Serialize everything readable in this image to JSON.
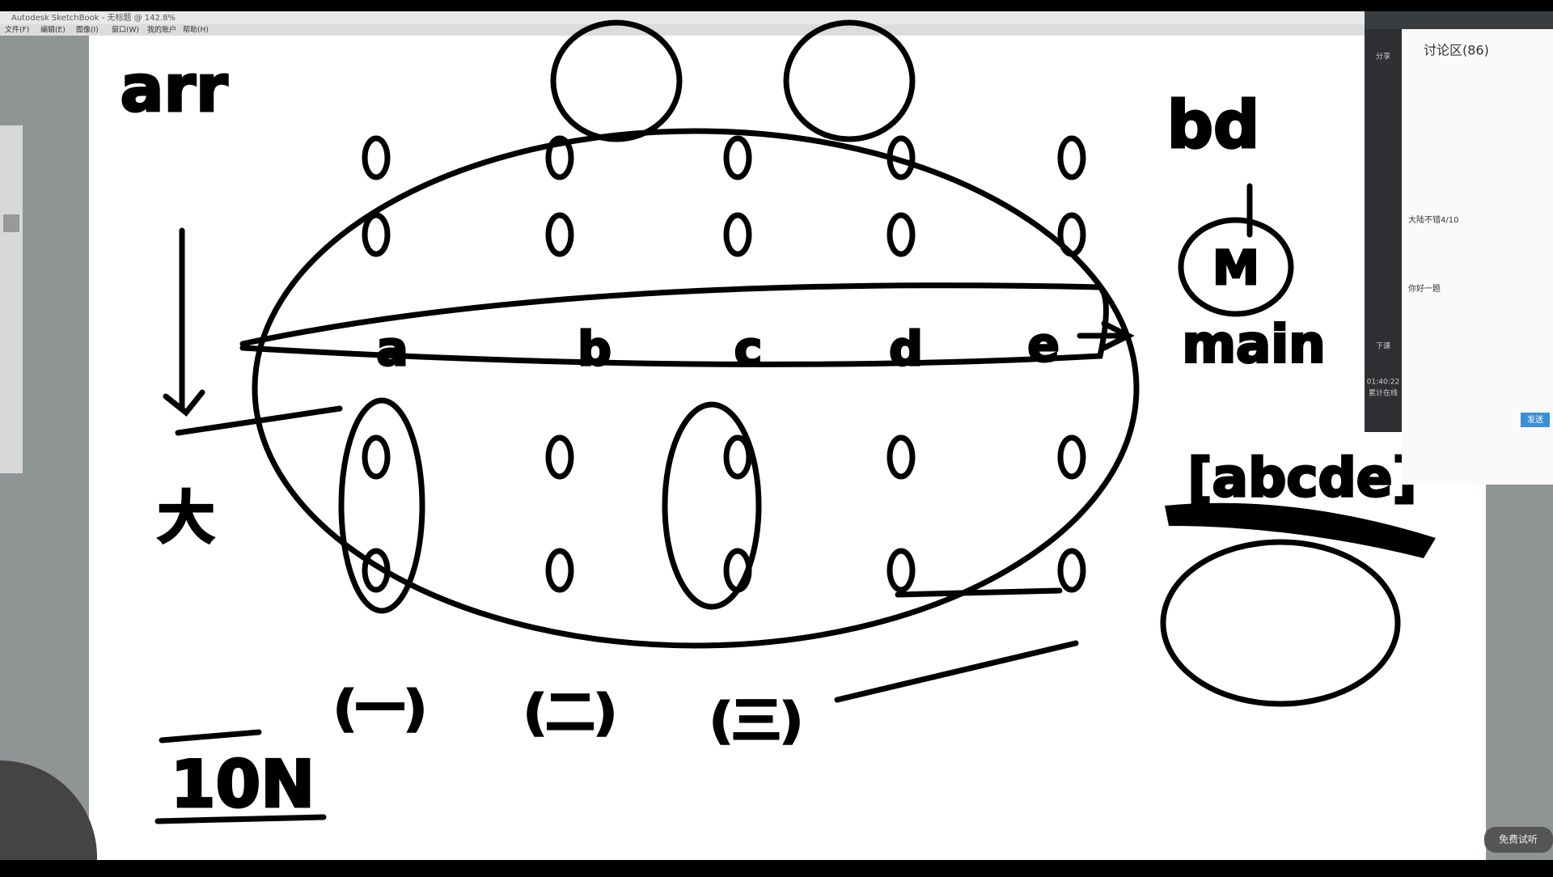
{
  "window": {
    "title": "Autodesk SketchBook - 无标题 @ 142.8%",
    "menu": [
      "文件(F)",
      "编辑(E)",
      "图像(I)",
      "窗口(W)",
      "我的账户",
      "帮助(H)"
    ]
  },
  "canvas": {
    "labels": [
      "arr",
      "bd",
      "main",
      "a",
      "b",
      "c",
      "d",
      "e",
      "M",
      "[abcde]",
      "大",
      "10N",
      "(一)",
      "(二)",
      "(三)"
    ]
  },
  "chat": {
    "header": "讨论区(86)",
    "messages": [
      "大陆不错4/10",
      "你好一题"
    ],
    "side": [
      "分享",
      "下课"
    ],
    "timer": "01:40:22",
    "online": "累计在线",
    "send": "发送"
  },
  "footer": {
    "button": "免费试听"
  }
}
